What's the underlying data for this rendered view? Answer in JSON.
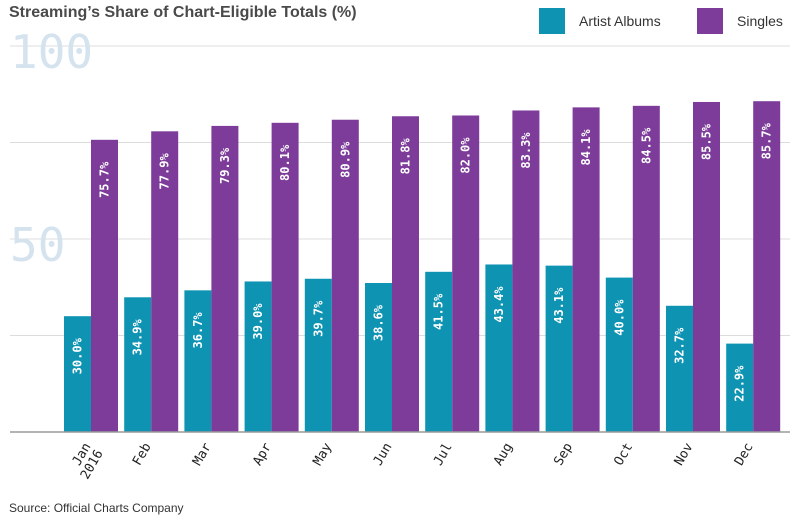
{
  "title": "Streaming’s Share of Chart-Eligible Totals (%)",
  "source": "Source: Official Charts Company",
  "colors": {
    "albums": "#0e93b3",
    "singles": "#7d3c9a",
    "grid": "#dcdcdc",
    "axis": "#9a9a9a",
    "ytick": "#d5e3ef",
    "bar_label": "#ffffff"
  },
  "chart_data": {
    "type": "bar",
    "title": "Streaming’s Share of Chart-Eligible Totals (%)",
    "xlabel": "",
    "ylabel": "",
    "ylim": [
      0,
      120
    ],
    "yticks": [
      100,
      50
    ],
    "yticks_labels": [
      "100",
      "50"
    ],
    "grid": true,
    "legend_position": "top-right",
    "categories": [
      [
        "Jan",
        "2016"
      ],
      [
        "Feb"
      ],
      [
        "Mar"
      ],
      [
        "Apr"
      ],
      [
        "May"
      ],
      [
        "Jun"
      ],
      [
        "Jul"
      ],
      [
        "Aug"
      ],
      [
        "Sep"
      ],
      [
        "Oct"
      ],
      [
        "Nov"
      ],
      [
        "Dec"
      ]
    ],
    "series": [
      {
        "name": "Artist Albums",
        "values": [
          30.0,
          34.9,
          36.7,
          39.0,
          39.7,
          38.6,
          41.5,
          43.4,
          43.1,
          40.0,
          32.7,
          22.9
        ],
        "labels": [
          "30.0%",
          "34.9%",
          "36.7%",
          "39.0%",
          "39.7%",
          "38.6%",
          "41.5%",
          "43.4%",
          "43.1%",
          "40.0%",
          "32.7%",
          "22.9%"
        ]
      },
      {
        "name": "Singles",
        "values": [
          75.7,
          77.9,
          79.3,
          80.1,
          80.9,
          81.8,
          82.0,
          83.3,
          84.1,
          84.5,
          85.5,
          85.7
        ],
        "labels": [
          "75.7%",
          "77.9%",
          "79.3%",
          "80.1%",
          "80.9%",
          "81.8%",
          "82.0%",
          "83.3%",
          "84.1%",
          "84.5%",
          "85.5%",
          "85.7%"
        ]
      }
    ]
  }
}
